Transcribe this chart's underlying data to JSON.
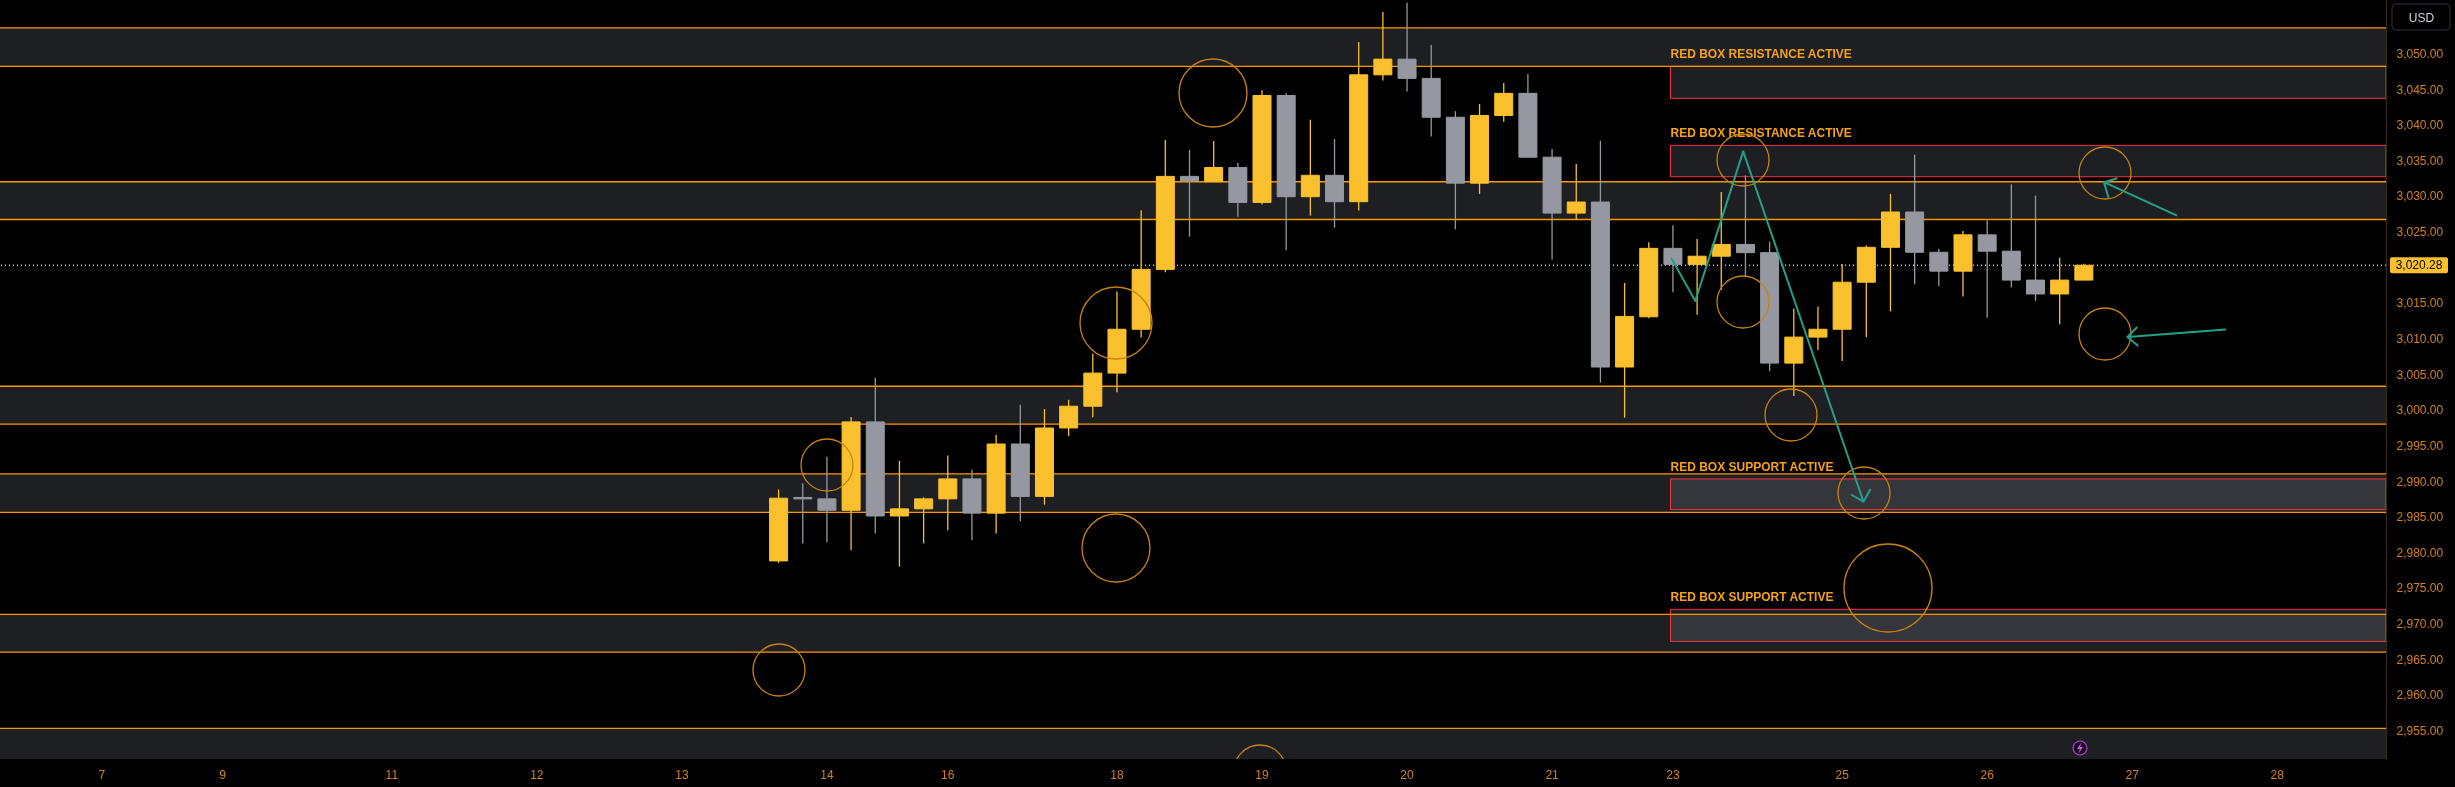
{
  "chart_data": {
    "type": "candlestick",
    "categories": [
      null,
      null,
      null,
      null,
      "7",
      null,
      null,
      null,
      null,
      "9",
      null,
      null,
      null,
      null,
      null,
      null,
      "11",
      null,
      null,
      null,
      null,
      null,
      "12",
      null,
      null,
      null,
      null,
      null,
      "13",
      null,
      null,
      null,
      null,
      null,
      "14",
      null,
      null,
      null,
      null,
      "16",
      null,
      null,
      null,
      null,
      null,
      null,
      "18",
      null,
      null,
      null,
      null,
      null,
      "19",
      null,
      null,
      null,
      null,
      null,
      "20",
      null,
      null,
      null,
      null,
      null,
      "21",
      null,
      null,
      null,
      null,
      "23",
      null,
      null,
      null,
      null,
      null,
      null,
      "25",
      null,
      null,
      null,
      null,
      null,
      "26",
      null,
      null,
      null,
      null,
      null,
      "27",
      null,
      null,
      null,
      null,
      null,
      "28",
      null,
      null,
      null,
      null
    ],
    "ohlc": [
      null,
      null,
      null,
      null,
      null,
      null,
      null,
      null,
      null,
      null,
      null,
      null,
      null,
      null,
      null,
      null,
      null,
      null,
      null,
      null,
      null,
      null,
      null,
      null,
      null,
      null,
      null,
      null,
      null,
      null,
      null,
      null,
      [
        2978.8,
        2988.8,
        2978.5,
        2987.6
      ],
      [
        2987.7,
        2989.7,
        2981.25,
        2987.5
      ],
      [
        2987.5,
        2993.4,
        2981.4,
        2985.9
      ],
      [
        2985.9,
        2999.0,
        2980.3,
        2998.3
      ],
      [
        2998.3,
        3004.5,
        2982.65,
        2985.1
      ],
      [
        2985.1,
        2992.85,
        2978.0,
        2986.1
      ],
      [
        2986.1,
        2987.7,
        2981.25,
        2987.5
      ],
      [
        2987.5,
        2993.6,
        2983.1,
        2990.3
      ],
      [
        2990.3,
        2991.6,
        2981.7,
        2985.5
      ],
      [
        2985.5,
        2996.45,
        2982.65,
        2995.2
      ],
      [
        2995.2,
        3000.7,
        2984.35,
        2987.85
      ],
      [
        2987.85,
        3000.1,
        2986.7,
        2997.45
      ],
      [
        2997.45,
        3001.4,
        2996.3,
        3000.5
      ],
      [
        3000.5,
        3007.9,
        2998.95,
        3005.15
      ],
      [
        3005.15,
        3016.6,
        3002.45,
        3011.3
      ],
      [
        3011.3,
        3028.0,
        3010.15,
        3019.7
      ],
      [
        3019.7,
        3037.85,
        3019.3,
        3032.75
      ],
      [
        3032.75,
        3036.5,
        3024.3,
        3032.1
      ],
      [
        3032.0,
        3037.7,
        3032.0,
        3034.0
      ],
      [
        3034.0,
        3034.65,
        3027.1,
        3029.1
      ],
      [
        3029.1,
        3044.85,
        3028.8,
        3044.1
      ],
      [
        3044.1,
        3044.4,
        3022.4,
        3029.9
      ],
      [
        3029.9,
        3040.7,
        3027.25,
        3032.9
      ],
      [
        3032.9,
        3038.0,
        3025.55,
        3029.2
      ],
      [
        3029.2,
        3051.6,
        3027.95,
        3047.0
      ],
      [
        3047.0,
        3055.8,
        3046.2,
        3049.2
      ],
      [
        3049.2,
        3057.1,
        3044.65,
        3046.5
      ],
      [
        3046.5,
        3051.2,
        3038.35,
        3041.05
      ],
      [
        3041.05,
        3041.9,
        3025.3,
        3031.8
      ],
      [
        3031.8,
        3042.9,
        3030.3,
        3041.3
      ],
      [
        3041.3,
        3045.85,
        3040.4,
        3044.4
      ],
      [
        3044.4,
        3047.1,
        3035.45,
        3035.45
      ],
      [
        3035.45,
        3036.6,
        3021.1,
        3027.6
      ],
      [
        3027.6,
        3034.5,
        3026.65,
        3029.15
      ],
      [
        3029.15,
        3037.75,
        3003.8,
        3006.0
      ],
      [
        3006.0,
        3017.8,
        2998.9,
        3013.1
      ],
      [
        3013.05,
        3023.5,
        3012.85,
        3022.65
      ],
      [
        3022.65,
        3025.9,
        3016.5,
        3020.4
      ],
      [
        3020.4,
        3023.95,
        3013.35,
        3021.55
      ],
      [
        3021.55,
        3030.55,
        3016.8,
        3023.2
      ],
      [
        3023.2,
        3032.9,
        3018.65,
        3022.05
      ],
      [
        3022.05,
        3023.6,
        3005.4,
        3006.55
      ],
      [
        3006.55,
        3014.2,
        3001.95,
        3010.2
      ],
      [
        3010.2,
        3014.5,
        3008.4,
        3011.3
      ],
      [
        3011.3,
        3020.45,
        3006.85,
        3017.9
      ],
      [
        3017.9,
        3023.05,
        3010.2,
        3022.8
      ],
      [
        3022.8,
        3030.3,
        3013.8,
        3027.75
      ],
      [
        3027.75,
        3035.8,
        3017.6,
        3022.1
      ],
      [
        3022.1,
        3022.6,
        3017.35,
        3019.45
      ],
      [
        3019.45,
        3025.1,
        3015.9,
        3024.55
      ],
      [
        3024.55,
        3026.6,
        3012.9,
        3022.25
      ],
      [
        3022.25,
        3031.65,
        3017.15,
        3018.2
      ],
      [
        3018.2,
        3030.05,
        3015.3,
        3016.25
      ],
      [
        3016.25,
        3021.35,
        3012.0,
        3018.2
      ],
      [
        3018.2,
        3020.5,
        3018.2,
        3020.28
      ],
      null,
      null,
      null,
      null,
      null,
      null,
      null,
      null,
      null,
      null,
      null,
      null
    ],
    "colors": [
      null,
      null,
      null,
      null,
      null,
      null,
      null,
      null,
      null,
      null,
      null,
      null,
      null,
      null,
      null,
      null,
      null,
      null,
      null,
      null,
      null,
      null,
      null,
      null,
      null,
      null,
      null,
      null,
      null,
      null,
      null,
      null,
      "#fbc02d",
      "#9598a1",
      "#9598a1",
      "#fbc02d",
      "#9598a1",
      "#fbc02d",
      "#fbc02d",
      "#fbc02d",
      "#9598a1",
      "#fbc02d",
      "#9598a1",
      "#fbc02d",
      "#fbc02d",
      "#fbc02d",
      "#fbc02d",
      "#fbc02d",
      "#fbc02d",
      "#9598a1",
      "#fbc02d",
      "#9598a1",
      "#fbc02d",
      "#9598a1",
      "#fbc02d",
      "#9598a1",
      "#fbc02d",
      "#fbc02d",
      "#9598a1",
      "#9598a1",
      "#9598a1",
      "#fbc02d",
      "#fbc02d",
      "#9598a1",
      "#9598a1",
      "#fbc02d",
      "#9598a1",
      "#fbc02d",
      "#fbc02d",
      "#9598a1",
      "#fbc02d",
      "#fbc02d",
      "#9598a1",
      "#9598a1",
      "#fbc02d",
      "#fbc02d",
      "#fbc02d",
      "#fbc02d",
      "#fbc02d",
      "#9598a1",
      "#9598a1",
      "#fbc02d",
      "#9598a1",
      "#9598a1",
      "#9598a1",
      "#fbc02d",
      "#fbc02d",
      null,
      null,
      null,
      null,
      null,
      null,
      null,
      null,
      null,
      null,
      null,
      null
    ],
    "ylim": [
      2951,
      3057.5
    ],
    "yticks": [
      {
        "value": 2955,
        "label": "2,955.00"
      },
      {
        "value": 2960,
        "label": "2,960.00"
      },
      {
        "value": 2965,
        "label": "2,965.00"
      },
      {
        "value": 2970,
        "label": "2,970.00"
      },
      {
        "value": 2975,
        "label": "2,975.00"
      },
      {
        "value": 2980,
        "label": "2,980.00"
      },
      {
        "value": 2985,
        "label": "2,985.00"
      },
      {
        "value": 2990,
        "label": "2,990.00"
      },
      {
        "value": 2995,
        "label": "2,995.00"
      },
      {
        "value": 3000,
        "label": "3,000.00"
      },
      {
        "value": 3005,
        "label": "3,005.00"
      },
      {
        "value": 3010,
        "label": "3,010.00"
      },
      {
        "value": 3015,
        "label": "3,015.00"
      },
      {
        "value": 3025,
        "label": "3,025.00"
      },
      {
        "value": 3030,
        "label": "3,030.00"
      },
      {
        "value": 3035,
        "label": "3,035.00"
      },
      {
        "value": 3040,
        "label": "3,040.00"
      },
      {
        "value": 3045,
        "label": "3,045.00"
      },
      {
        "value": 3050,
        "label": "3,050.00"
      }
    ],
    "ylabel": "USD",
    "bands": [
      {
        "axis": "y",
        "from": 3048.2,
        "to": 3053.6,
        "color": "#787b86"
      },
      {
        "axis": "y",
        "from": 3026.7,
        "to": 3032.0,
        "color": "#787b86"
      },
      {
        "axis": "y",
        "from": 2998.0,
        "to": 3003.3,
        "color": "#787b86"
      },
      {
        "axis": "y",
        "from": 2985.6,
        "to": 2991.0,
        "color": "#787b86"
      },
      {
        "axis": "y",
        "from": 2966.0,
        "to": 2971.3,
        "color": "#787b86"
      },
      {
        "axis": "y",
        "from": 2951,
        "to": 2955.3,
        "color": "#787b86"
      },
      {
        "axis": "y",
        "from": 3043.7,
        "to": 3048.2,
        "color": "#f23645",
        "label": "RED BOX RESISTANCE ACTIVE"
      },
      {
        "axis": "y",
        "from": 3032.7,
        "to": 3037.1,
        "color": "#f23645",
        "label": "RED BOX RESISTANCE ACTIVE"
      },
      {
        "axis": "y",
        "from": 2986.0,
        "to": 2990.3,
        "color": "#f23645",
        "label": "RED BOX SUPPORT ACTIVE"
      },
      {
        "axis": "y",
        "from": 2967.5,
        "to": 2972.0,
        "color": "#f23645",
        "label": "RED BOX SUPPORT ACTIVE"
      }
    ],
    "ref_lines": [
      {
        "axis": "y",
        "value": 3053.6,
        "color": "#ff9800"
      },
      {
        "axis": "y",
        "value": 3048.2,
        "color": "#ff9800"
      },
      {
        "axis": "y",
        "value": 3032.0,
        "color": "#ff9800"
      },
      {
        "axis": "y",
        "value": 3026.7,
        "color": "#ff9800"
      },
      {
        "axis": "y",
        "value": 3003.3,
        "color": "#ff9800"
      },
      {
        "axis": "y",
        "value": 2998.0,
        "color": "#ff9800"
      },
      {
        "axis": "y",
        "value": 2991.0,
        "color": "#ff9800"
      },
      {
        "axis": "y",
        "value": 2985.6,
        "color": "#ff9800"
      },
      {
        "axis": "y",
        "value": 2971.3,
        "color": "#ff9800"
      },
      {
        "axis": "y",
        "value": 2966.0,
        "color": "#ff9800"
      },
      {
        "axis": "y",
        "value": 2955.3,
        "color": "#ff9800"
      },
      {
        "axis": "y",
        "value": 3020.28,
        "label": "3,020.28",
        "color": "#fbc02d",
        "line_style": "dotted"
      }
    ]
  }
}
